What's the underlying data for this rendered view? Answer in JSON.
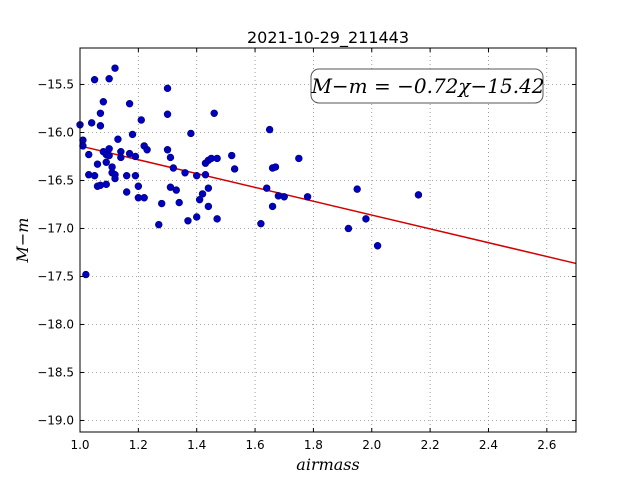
{
  "chart_data": {
    "type": "scatter",
    "title": "2021-10-29_211443",
    "xlabel": "airmass",
    "ylabel": "M−m",
    "xlim": [
      1.0,
      2.7
    ],
    "ylim": [
      -19.12,
      -15.12
    ],
    "xticks": [
      1.0,
      1.2,
      1.4,
      1.6,
      1.8,
      2.0,
      2.2,
      2.4,
      2.6
    ],
    "xtick_labels": [
      "1.0",
      "1.2",
      "1.4",
      "1.6",
      "1.8",
      "2.0",
      "2.2",
      "2.4",
      "2.6"
    ],
    "yticks": [
      -15.5,
      -16.0,
      -16.5,
      -17.0,
      -17.5,
      -18.0,
      -18.5,
      -19.0
    ],
    "ytick_labels": [
      "−15.5",
      "−16.0",
      "−16.5",
      "−17.0",
      "−17.5",
      "−18.0",
      "−18.5",
      "−19.0"
    ],
    "grid": true,
    "annotation": "M−m = −0.72χ−15.42",
    "fit": {
      "slope": -0.72,
      "intercept": -15.42,
      "color": "#d40000"
    },
    "marker_color": "#0000bf",
    "points": [
      [
        1.0,
        -15.92
      ],
      [
        1.01,
        -16.08
      ],
      [
        1.01,
        -16.14
      ],
      [
        1.02,
        -17.48
      ],
      [
        1.03,
        -16.23
      ],
      [
        1.03,
        -16.44
      ],
      [
        1.04,
        -15.9
      ],
      [
        1.05,
        -16.45
      ],
      [
        1.05,
        -15.45
      ],
      [
        1.06,
        -16.56
      ],
      [
        1.06,
        -16.33
      ],
      [
        1.07,
        -15.8
      ],
      [
        1.07,
        -15.93
      ],
      [
        1.07,
        -16.55
      ],
      [
        1.08,
        -16.2
      ],
      [
        1.08,
        -15.68
      ],
      [
        1.09,
        -16.23
      ],
      [
        1.09,
        -16.31
      ],
      [
        1.09,
        -16.54
      ],
      [
        1.1,
        -16.17
      ],
      [
        1.1,
        -16.24
      ],
      [
        1.1,
        -15.44
      ],
      [
        1.11,
        -16.36
      ],
      [
        1.11,
        -16.42
      ],
      [
        1.12,
        -16.44
      ],
      [
        1.12,
        -16.48
      ],
      [
        1.12,
        -15.33
      ],
      [
        1.13,
        -16.07
      ],
      [
        1.14,
        -16.2
      ],
      [
        1.14,
        -16.26
      ],
      [
        1.16,
        -16.62
      ],
      [
        1.16,
        -16.45
      ],
      [
        1.17,
        -15.7
      ],
      [
        1.17,
        -16.22
      ],
      [
        1.18,
        -16.02
      ],
      [
        1.19,
        -16.45
      ],
      [
        1.19,
        -16.25
      ],
      [
        1.2,
        -16.68
      ],
      [
        1.2,
        -16.56
      ],
      [
        1.21,
        -15.87
      ],
      [
        1.22,
        -16.14
      ],
      [
        1.22,
        -16.68
      ],
      [
        1.23,
        -16.18
      ],
      [
        1.27,
        -16.96
      ],
      [
        1.28,
        -16.74
      ],
      [
        1.3,
        -15.54
      ],
      [
        1.3,
        -15.81
      ],
      [
        1.3,
        -16.18
      ],
      [
        1.31,
        -16.26
      ],
      [
        1.31,
        -16.57
      ],
      [
        1.32,
        -16.37
      ],
      [
        1.33,
        -16.6
      ],
      [
        1.34,
        -16.73
      ],
      [
        1.36,
        -16.42
      ],
      [
        1.37,
        -16.92
      ],
      [
        1.38,
        -16.01
      ],
      [
        1.4,
        -16.88
      ],
      [
        1.4,
        -16.45
      ],
      [
        1.41,
        -16.7
      ],
      [
        1.42,
        -16.64
      ],
      [
        1.43,
        -16.32
      ],
      [
        1.43,
        -16.44
      ],
      [
        1.44,
        -16.58
      ],
      [
        1.44,
        -16.77
      ],
      [
        1.44,
        -16.29
      ],
      [
        1.45,
        -16.27
      ],
      [
        1.46,
        -15.8
      ],
      [
        1.47,
        -16.9
      ],
      [
        1.47,
        -16.27
      ],
      [
        1.52,
        -16.24
      ],
      [
        1.53,
        -16.38
      ],
      [
        1.62,
        -16.95
      ],
      [
        1.64,
        -16.58
      ],
      [
        1.65,
        -15.97
      ],
      [
        1.66,
        -16.77
      ],
      [
        1.66,
        -16.37
      ],
      [
        1.67,
        -16.36
      ],
      [
        1.68,
        -16.66
      ],
      [
        1.7,
        -16.67
      ],
      [
        1.75,
        -16.27
      ],
      [
        1.78,
        -16.67
      ],
      [
        1.92,
        -17.0
      ],
      [
        1.95,
        -16.59
      ],
      [
        1.98,
        -16.9
      ],
      [
        2.02,
        -17.18
      ],
      [
        2.16,
        -16.65
      ]
    ]
  }
}
